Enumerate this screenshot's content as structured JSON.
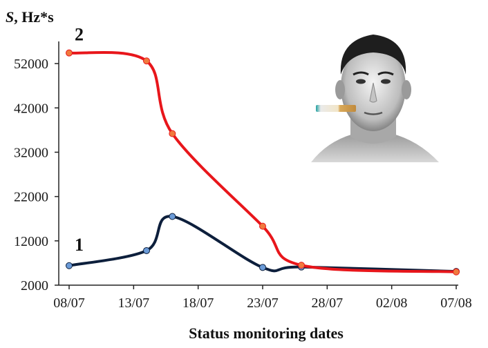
{
  "chart_data": {
    "type": "line",
    "ylabel_italic": "S",
    "ylabel_rest": ", Hz*s",
    "xlabel": "Status monitoring dates",
    "x_ticks": [
      "08/07",
      "13/07",
      "18/07",
      "23/07",
      "28/07",
      "02/08",
      "07/08"
    ],
    "y_ticks": [
      2000,
      12000,
      22000,
      32000,
      42000,
      52000
    ],
    "xlim": [
      "08/07",
      "07/08"
    ],
    "ylim": [
      2000,
      57000
    ],
    "grid": false,
    "series": [
      {
        "name": "1",
        "color": "#0d1f3c",
        "marker_color": "#6b9bd8",
        "points": [
          {
            "x": "08/07",
            "y": 6400
          },
          {
            "x": "14/07",
            "y": 9800
          },
          {
            "x": "16/07",
            "y": 17500
          },
          {
            "x": "23/07",
            "y": 6000
          },
          {
            "x": "26/07",
            "y": 6100
          },
          {
            "x": "07/08",
            "y": 5100
          }
        ]
      },
      {
        "name": "2",
        "color": "#e8161b",
        "marker_color": "#f07a3e",
        "points": [
          {
            "x": "08/07",
            "y": 54400
          },
          {
            "x": "14/07",
            "y": 52600
          },
          {
            "x": "16/07",
            "y": 36200
          },
          {
            "x": "23/07",
            "y": 15300
          },
          {
            "x": "26/07",
            "y": 6500
          },
          {
            "x": "07/08",
            "y": 5000
          }
        ]
      }
    ]
  },
  "illustration": {
    "icon": "man-smoking-cigarette-icon"
  }
}
